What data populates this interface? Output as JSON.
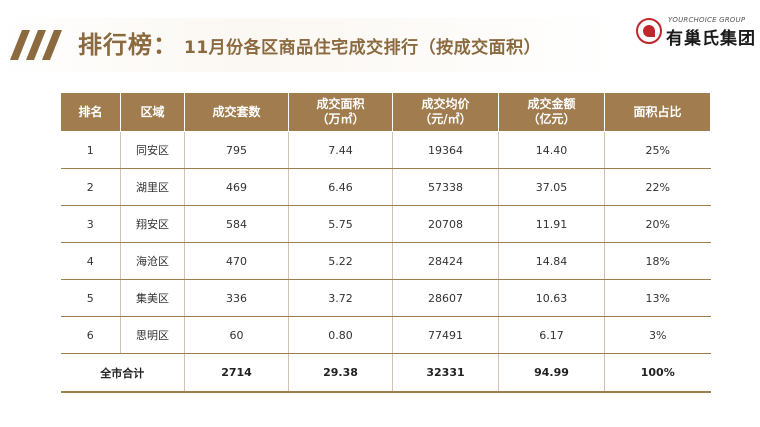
{
  "header": {
    "title_main": "排行榜：",
    "title_sub": "11月份各区商品住宅成交排行（按成交面积）"
  },
  "logo": {
    "en": "YOURCHOICE GROUP",
    "cn": "有巢氏集团"
  },
  "table": {
    "columns": [
      {
        "l1": "排名",
        "l2": ""
      },
      {
        "l1": "区域",
        "l2": ""
      },
      {
        "l1": "成交套数",
        "l2": ""
      },
      {
        "l1": "成交面积",
        "l2": "（万㎡）"
      },
      {
        "l1": "成交均价",
        "l2": "（元/㎡）"
      },
      {
        "l1": "成交金额",
        "l2": "（亿元）"
      },
      {
        "l1": "面积占比",
        "l2": ""
      }
    ],
    "rows": [
      [
        "1",
        "同安区",
        "795",
        "7.44",
        "19364",
        "14.40",
        "25%"
      ],
      [
        "2",
        "湖里区",
        "469",
        "6.46",
        "57338",
        "37.05",
        "22%"
      ],
      [
        "3",
        "翔安区",
        "584",
        "5.75",
        "20708",
        "11.91",
        "20%"
      ],
      [
        "4",
        "海沧区",
        "470",
        "5.22",
        "28424",
        "14.84",
        "18%"
      ],
      [
        "5",
        "集美区",
        "336",
        "3.72",
        "28607",
        "10.63",
        "13%"
      ],
      [
        "6",
        "思明区",
        "60",
        "0.80",
        "77491",
        "6.17",
        "3%"
      ]
    ],
    "total": {
      "label": "全市合计",
      "cells": [
        "2714",
        "29.38",
        "32331",
        "94.99",
        "100%"
      ]
    }
  }
}
